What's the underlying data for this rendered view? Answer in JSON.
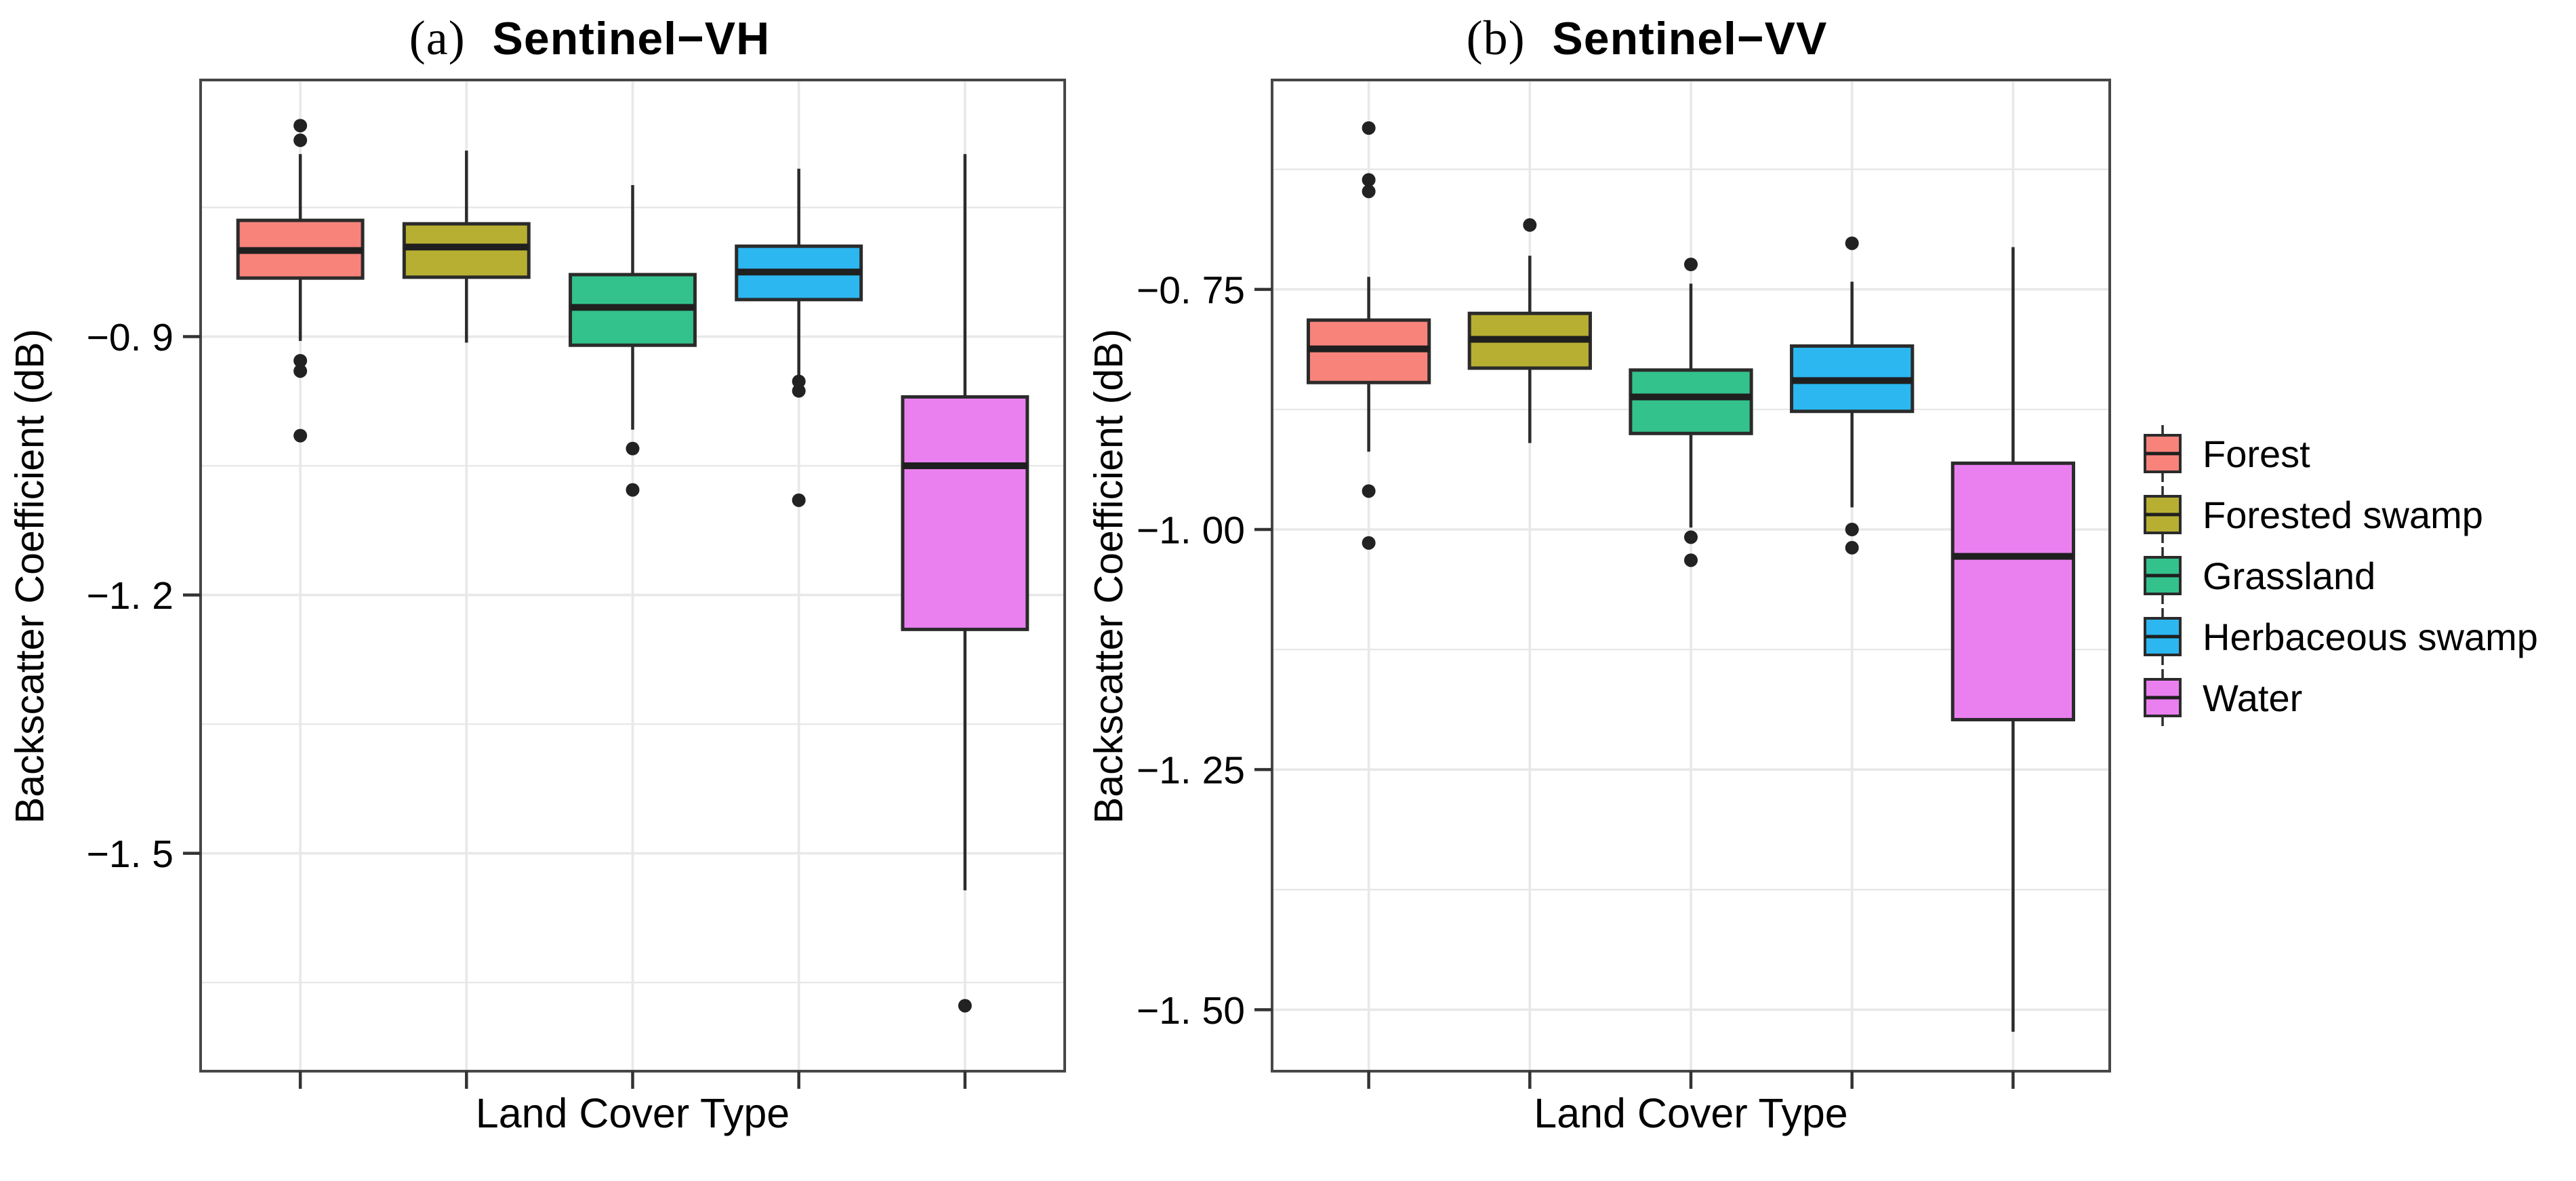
{
  "chart_data": [
    {
      "type": "boxplot",
      "panel": "a",
      "title_prefix": "(a)",
      "title_main": "Sentinel−VH",
      "xlabel": "Land Cover Type",
      "ylabel": "Backscatter Coefficient (dB)",
      "ylim": [
        -1.753,
        -0.602
      ],
      "yticks": [
        -0.9,
        -1.2,
        -1.5
      ],
      "ytick_labels": [
        "−0. 9",
        "−1. 2",
        "−1. 5"
      ],
      "grid": true,
      "legend_position": "right-of-second-panel",
      "categories": [
        "Forest",
        "Forested swamp",
        "Grassland",
        "Herbaceous swamp",
        "Water"
      ],
      "series": [
        {
          "name": "Forest",
          "whisker_low": -0.905,
          "q1": -0.832,
          "median": -0.8,
          "q3": -0.765,
          "whisker_high": -0.688,
          "outliers": [
            -0.655,
            -0.672,
            -0.928,
            -0.94,
            -1.015
          ]
        },
        {
          "name": "Forested swamp",
          "whisker_low": -0.907,
          "q1": -0.831,
          "median": -0.796,
          "q3": -0.769,
          "whisker_high": -0.684,
          "outliers": []
        },
        {
          "name": "Grassland",
          "whisker_low": -1.008,
          "q1": -0.91,
          "median": -0.866,
          "q3": -0.828,
          "whisker_high": -0.724,
          "outliers": [
            -1.03,
            -1.078
          ]
        },
        {
          "name": "Herbaceous swamp",
          "whisker_low": -0.947,
          "q1": -0.857,
          "median": -0.825,
          "q3": -0.795,
          "whisker_high": -0.705,
          "outliers": [
            -0.952,
            -0.963,
            -1.09
          ]
        },
        {
          "name": "Water",
          "whisker_low": -1.543,
          "q1": -1.24,
          "median": -1.05,
          "q3": -0.97,
          "whisker_high": -0.688,
          "outliers": [
            -1.677
          ]
        }
      ]
    },
    {
      "type": "boxplot",
      "panel": "b",
      "title_prefix": "(b)",
      "title_main": "Sentinel−VV",
      "xlabel": "Land Cover Type",
      "ylabel": "Backscatter Coefficient (dB)",
      "ylim": [
        -1.564,
        -0.532
      ],
      "yticks": [
        -0.75,
        -1.0,
        -1.25,
        -1.5
      ],
      "ytick_labels": [
        "−0. 75",
        "−1. 00",
        "−1. 25",
        "−1. 50"
      ],
      "grid": true,
      "legend_position": "right",
      "categories": [
        "Forest",
        "Forested swamp",
        "Grassland",
        "Herbaceous swamp",
        "Water"
      ],
      "series": [
        {
          "name": "Forest",
          "whisker_low": -0.919,
          "q1": -0.847,
          "median": -0.812,
          "q3": -0.782,
          "whisker_high": -0.737,
          "outliers": [
            -0.582,
            -0.636,
            -0.648,
            -0.96,
            -1.014
          ]
        },
        {
          "name": "Forested swamp",
          "whisker_low": -0.91,
          "q1": -0.832,
          "median": -0.802,
          "q3": -0.775,
          "whisker_high": -0.715,
          "outliers": [
            -0.683
          ]
        },
        {
          "name": "Grassland",
          "whisker_low": -0.998,
          "q1": -0.9,
          "median": -0.862,
          "q3": -0.834,
          "whisker_high": -0.744,
          "outliers": [
            -0.724,
            -1.008,
            -1.032
          ]
        },
        {
          "name": "Herbaceous swamp",
          "whisker_low": -0.977,
          "q1": -0.877,
          "median": -0.845,
          "q3": -0.809,
          "whisker_high": -0.742,
          "outliers": [
            -0.702,
            -1.0,
            -1.019
          ]
        },
        {
          "name": "Water",
          "whisker_low": -1.523,
          "q1": -1.198,
          "median": -1.028,
          "q3": -0.931,
          "whisker_high": -0.706,
          "outliers": []
        }
      ]
    }
  ],
  "legend": {
    "items": [
      {
        "label": "Forest",
        "color": "#F8837B"
      },
      {
        "label": "Forested swamp",
        "color": "#B7AF32"
      },
      {
        "label": "Grassland",
        "color": "#33C28C"
      },
      {
        "label": "Herbaceous swamp",
        "color": "#2CB7F1"
      },
      {
        "label": "Water",
        "color": "#EA80F0"
      }
    ]
  },
  "style": {
    "box_border_color": "#2b2b2b",
    "median_color": "#1f1f1f",
    "gridline_color": "#e8e8e8",
    "panel_border_color": "#474747",
    "tick_color": "#333333",
    "text_color": "#000000",
    "background": "#ffffff"
  }
}
